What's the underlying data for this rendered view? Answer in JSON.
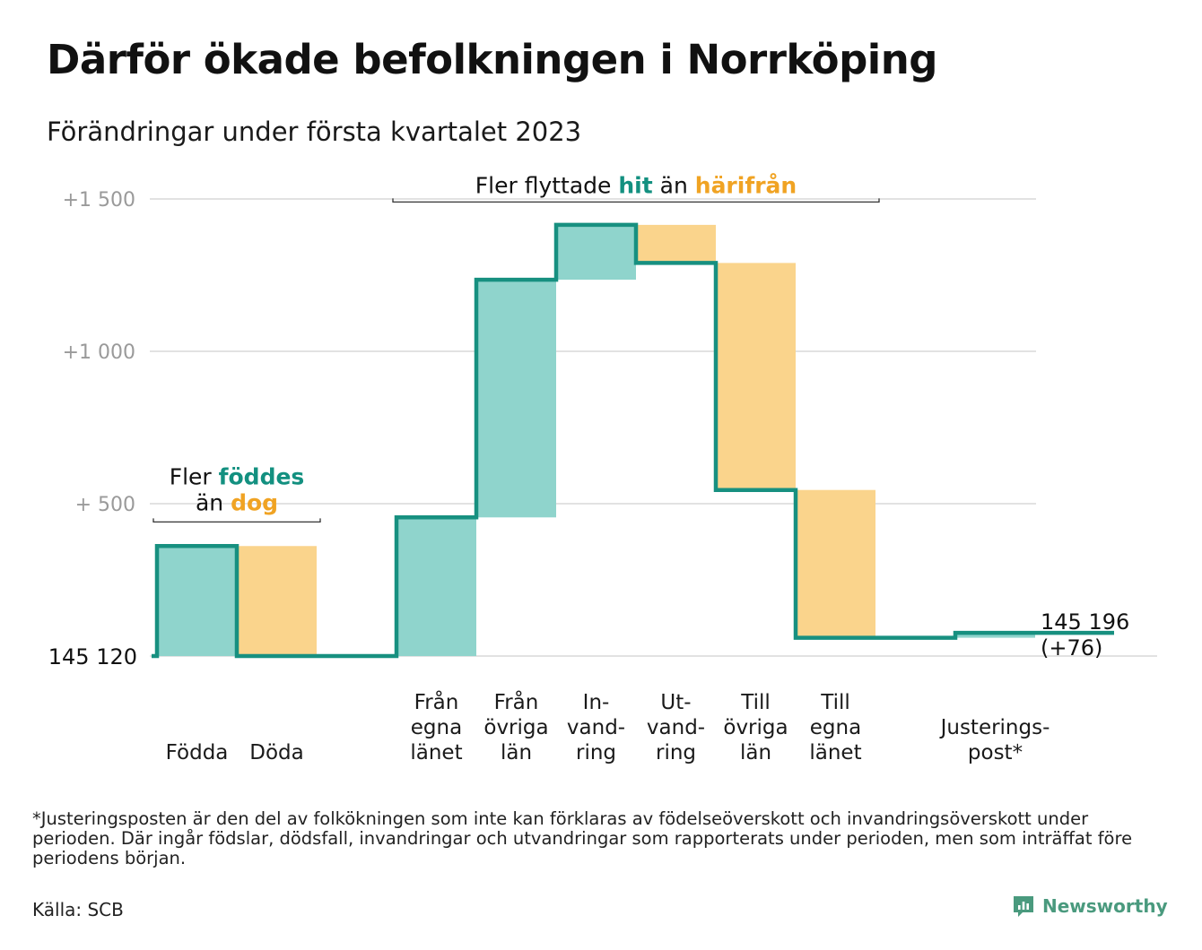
{
  "title": "Därför ökade befolkningen i Norrköping",
  "subtitle": "Förändringar under första kvartalet 2023",
  "footnote": "*Justeringsposten är den del av folkökningen som inte kan förklaras av födelseöverskott och invandringsöverskott under perioden. Där ingår födslar, dödsfall, invandringar och utvandringar som rapporterats under perioden, men som inträffat före periodens början.",
  "source": "Källa: SCB",
  "brand": "Newsworthy",
  "colors": {
    "increase": "#8fd4cc",
    "decrease": "#fad48c",
    "line": "#179080",
    "teal_text": "#139080",
    "orange_text": "#f0a323",
    "grid": "#e2e2e2",
    "tick_text": "#9a9a9a"
  },
  "chart_data": {
    "type": "waterfall",
    "start_label": "145 120",
    "end_label": "145 196",
    "end_change_label": "(+76)",
    "y_ticks": [
      {
        "value": 1500,
        "label": "+1 500"
      },
      {
        "value": 1000,
        "label": "+1 000"
      },
      {
        "value": 500,
        "label": "+ 500"
      }
    ],
    "ylim": [
      0,
      1500
    ],
    "steps": [
      {
        "lines": [
          "Födda"
        ],
        "change": 361
      },
      {
        "lines": [
          "Döda"
        ],
        "change": -361
      },
      {
        "lines": [],
        "change": 0,
        "spacer": true
      },
      {
        "lines": [
          "Från",
          "egna",
          "länet"
        ],
        "change": 455
      },
      {
        "lines": [
          "Från",
          "övriga",
          "län"
        ],
        "change": 780
      },
      {
        "lines": [
          "In-",
          "vand-",
          "ring"
        ],
        "change": 180
      },
      {
        "lines": [
          "Ut-",
          "vand-",
          "ring"
        ],
        "change": -125
      },
      {
        "lines": [
          "Till",
          "övriga",
          "län"
        ],
        "change": -745
      },
      {
        "lines": [
          "Till",
          "egna",
          "länet"
        ],
        "change": -485
      },
      {
        "lines": [],
        "change": 0,
        "spacer": true
      },
      {
        "lines": [
          "Justerings-",
          "post*"
        ],
        "change": 16
      }
    ],
    "annotations": [
      {
        "parts": [
          {
            "text": "Fler ",
            "style": "plain"
          },
          {
            "text": "föddes",
            "style": "teal"
          }
        ],
        "parts2": [
          {
            "text": "än ",
            "style": "plain"
          },
          {
            "text": "dog",
            "style": "orange"
          }
        ],
        "from_step": 0,
        "to_step": 1,
        "bracket_value": 440
      },
      {
        "parts": [
          {
            "text": "Fler flyttade ",
            "style": "plain"
          },
          {
            "text": "hit",
            "style": "teal"
          },
          {
            "text": " än ",
            "style": "plain"
          },
          {
            "text": "härifrån",
            "style": "orange"
          }
        ],
        "from_step": 3,
        "to_step": 8,
        "bracket_value": 1490
      }
    ]
  }
}
